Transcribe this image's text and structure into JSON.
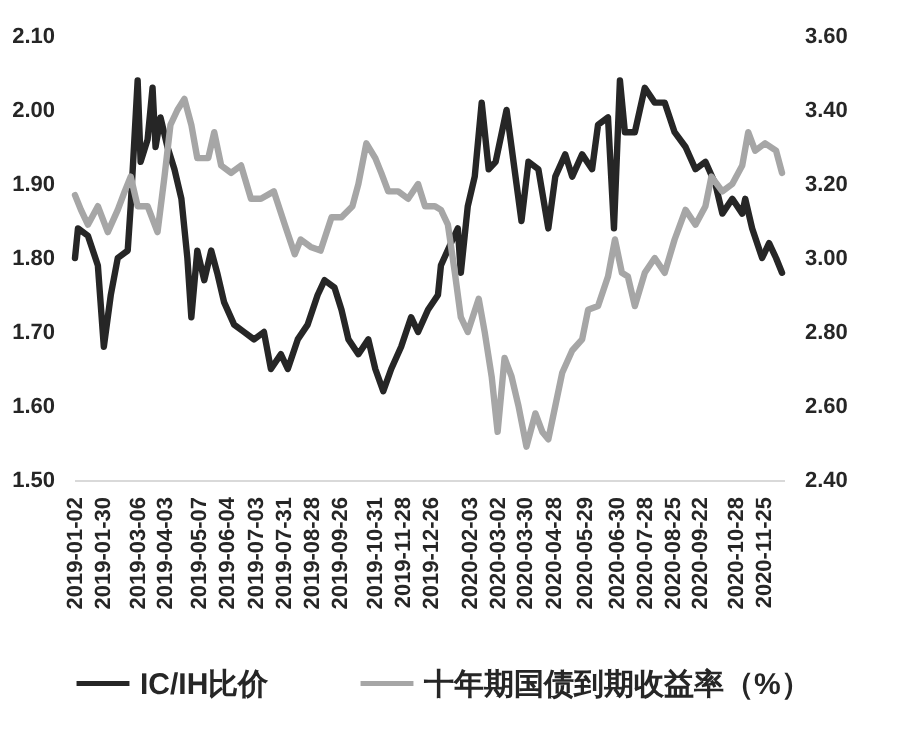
{
  "chart_data": {
    "type": "line",
    "series": [
      {
        "name": "IC/IH比价",
        "color": "#262626",
        "x": [
          "2019-01-02",
          "2019-01-05",
          "2019-01-15",
          "2019-01-25",
          "2019-01-31",
          "2019-02-07",
          "2019-02-14",
          "2019-02-24",
          "2019-02-27",
          "2019-03-06",
          "2019-03-09",
          "2019-03-16",
          "2019-03-21",
          "2019-03-24",
          "2019-03-29",
          "2019-04-05",
          "2019-04-12",
          "2019-04-19",
          "2019-04-25",
          "2019-04-29",
          "2019-05-05",
          "2019-05-12",
          "2019-05-19",
          "2019-05-25",
          "2019-06-01",
          "2019-06-11",
          "2019-06-21",
          "2019-07-01",
          "2019-07-11",
          "2019-07-18",
          "2019-07-28",
          "2019-08-04",
          "2019-08-14",
          "2019-08-24",
          "2019-09-03",
          "2019-09-10",
          "2019-09-20",
          "2019-09-27",
          "2019-10-04",
          "2019-10-14",
          "2019-10-24",
          "2019-10-31",
          "2019-11-08",
          "2019-11-16",
          "2019-11-26",
          "2019-12-06",
          "2019-12-13",
          "2019-12-23",
          "2020-01-02",
          "2020-01-05",
          "2020-01-15",
          "2020-01-22",
          "2020-01-25",
          "2020-02-01",
          "2020-02-08",
          "2020-02-15",
          "2020-02-22",
          "2020-02-29",
          "2020-03-11",
          "2020-03-19",
          "2020-03-26",
          "2020-04-02",
          "2020-04-12",
          "2020-04-22",
          "2020-04-29",
          "2020-05-09",
          "2020-05-16",
          "2020-05-26",
          "2020-06-05",
          "2020-06-11",
          "2020-06-21",
          "2020-06-27",
          "2020-07-03",
          "2020-07-08",
          "2020-07-18",
          "2020-07-28",
          "2020-08-07",
          "2020-08-17",
          "2020-08-27",
          "2020-09-07",
          "2020-09-17",
          "2020-09-27",
          "2020-10-07",
          "2020-10-14",
          "2020-10-24",
          "2020-11-03",
          "2020-11-06",
          "2020-11-13",
          "2020-11-23",
          "2020-11-30",
          "2020-12-07",
          "2020-12-13"
        ],
        "values": [
          1.8,
          1.84,
          1.83,
          1.79,
          1.68,
          1.75,
          1.8,
          1.81,
          1.87,
          2.04,
          1.93,
          1.96,
          2.03,
          1.95,
          1.99,
          1.95,
          1.92,
          1.88,
          1.8,
          1.72,
          1.81,
          1.77,
          1.81,
          1.78,
          1.74,
          1.71,
          1.7,
          1.69,
          1.7,
          1.65,
          1.67,
          1.65,
          1.69,
          1.71,
          1.75,
          1.77,
          1.76,
          1.73,
          1.69,
          1.67,
          1.69,
          1.65,
          1.62,
          1.65,
          1.68,
          1.72,
          1.7,
          1.73,
          1.75,
          1.79,
          1.82,
          1.84,
          1.78,
          1.87,
          1.91,
          2.01,
          1.92,
          1.93,
          2.0,
          1.92,
          1.85,
          1.93,
          1.92,
          1.84,
          1.91,
          1.94,
          1.91,
          1.94,
          1.92,
          1.98,
          1.99,
          1.84,
          2.04,
          1.97,
          1.97,
          2.03,
          2.01,
          2.01,
          1.97,
          1.95,
          1.92,
          1.93,
          1.9,
          1.86,
          1.88,
          1.86,
          1.88,
          1.84,
          1.8,
          1.82,
          1.8,
          1.78
        ]
      },
      {
        "name": "十年期国债到期收益率（%）",
        "color": "#a6a6a6",
        "axis": "y2",
        "x": [
          "2019-01-02",
          "2019-01-08",
          "2019-01-15",
          "2019-01-25",
          "2019-02-04",
          "2019-02-14",
          "2019-02-21",
          "2019-02-27",
          "2019-03-06",
          "2019-03-16",
          "2019-03-26",
          "2019-04-02",
          "2019-04-08",
          "2019-04-15",
          "2019-04-22",
          "2019-04-29",
          "2019-05-05",
          "2019-05-16",
          "2019-05-22",
          "2019-05-29",
          "2019-06-08",
          "2019-06-18",
          "2019-06-28",
          "2019-07-08",
          "2019-07-21",
          "2019-08-01",
          "2019-08-11",
          "2019-08-17",
          "2019-08-27",
          "2019-09-06",
          "2019-09-17",
          "2019-09-27",
          "2019-10-08",
          "2019-10-14",
          "2019-10-22",
          "2019-10-31",
          "2019-11-06",
          "2019-11-13",
          "2019-11-23",
          "2019-12-03",
          "2019-12-13",
          "2019-12-20",
          "2019-12-30",
          "2020-01-05",
          "2020-01-12",
          "2020-01-19",
          "2020-01-25",
          "2020-02-01",
          "2020-02-12",
          "2020-02-18",
          "2020-02-25",
          "2020-03-02",
          "2020-03-09",
          "2020-03-16",
          "2020-03-23",
          "2020-03-31",
          "2020-04-09",
          "2020-04-16",
          "2020-04-22",
          "2020-04-29",
          "2020-05-06",
          "2020-05-16",
          "2020-05-26",
          "2020-06-01",
          "2020-06-11",
          "2020-06-21",
          "2020-06-28",
          "2020-07-05",
          "2020-07-11",
          "2020-07-18",
          "2020-07-28",
          "2020-08-07",
          "2020-08-17",
          "2020-08-27",
          "2020-09-07",
          "2020-09-17",
          "2020-09-27",
          "2020-10-03",
          "2020-10-14",
          "2020-10-24",
          "2020-11-03",
          "2020-11-09",
          "2020-11-16",
          "2020-11-26",
          "2020-12-07",
          "2020-12-13"
        ],
        "values": [
          3.17,
          3.13,
          3.09,
          3.14,
          3.07,
          3.13,
          3.18,
          3.22,
          3.14,
          3.14,
          3.07,
          3.22,
          3.36,
          3.4,
          3.43,
          3.36,
          3.27,
          3.27,
          3.34,
          3.25,
          3.23,
          3.25,
          3.16,
          3.16,
          3.18,
          3.09,
          3.01,
          3.05,
          3.03,
          3.02,
          3.11,
          3.11,
          3.14,
          3.2,
          3.31,
          3.27,
          3.23,
          3.18,
          3.18,
          3.16,
          3.2,
          3.14,
          3.14,
          3.13,
          3.09,
          2.96,
          2.84,
          2.8,
          2.89,
          2.8,
          2.68,
          2.53,
          2.73,
          2.68,
          2.6,
          2.49,
          2.58,
          2.53,
          2.51,
          2.6,
          2.69,
          2.75,
          2.78,
          2.86,
          2.87,
          2.95,
          3.05,
          2.96,
          2.95,
          2.87,
          2.96,
          3.0,
          2.96,
          3.05,
          3.13,
          3.09,
          3.14,
          3.22,
          3.18,
          3.2,
          3.25,
          3.34,
          3.29,
          3.31,
          3.29,
          3.23
        ]
      }
    ],
    "xlim": [
      "2019-01-01",
      "2020-12-15"
    ],
    "xticks": [
      "2019-01-02",
      "2019-01-30",
      "2019-03-06",
      "2019-04-03",
      "2019-05-07",
      "2019-06-04",
      "2019-07-03",
      "2019-07-31",
      "2019-08-28",
      "2019-09-26",
      "2019-10-31",
      "2019-11-28",
      "2019-12-26",
      "2020-02-03",
      "2020-03-02",
      "2020-03-30",
      "2020-04-28",
      "2020-05-29",
      "2020-06-30",
      "2020-07-28",
      "2020-08-25",
      "2020-09-22",
      "2020-10-28",
      "2020-11-25"
    ],
    "ylim": [
      1.5,
      2.1
    ],
    "yticks": [
      {
        "value": 1.5,
        "label": "1.50"
      },
      {
        "value": 1.6,
        "label": "1.60"
      },
      {
        "value": 1.7,
        "label": "1.70"
      },
      {
        "value": 1.8,
        "label": "1.80"
      },
      {
        "value": 1.9,
        "label": "1.90"
      },
      {
        "value": 2.0,
        "label": "2.00"
      },
      {
        "value": 2.1,
        "label": "2.10"
      }
    ],
    "y2lim": [
      2.4,
      3.6
    ],
    "y2ticks": [
      {
        "value": 2.4,
        "label": "2.40"
      },
      {
        "value": 2.6,
        "label": "2.60"
      },
      {
        "value": 2.8,
        "label": "2.80"
      },
      {
        "value": 3.0,
        "label": "3.00"
      },
      {
        "value": 3.2,
        "label": "3.20"
      },
      {
        "value": 3.4,
        "label": "3.40"
      },
      {
        "value": 3.6,
        "label": "3.60"
      }
    ],
    "legend": "bottom"
  }
}
